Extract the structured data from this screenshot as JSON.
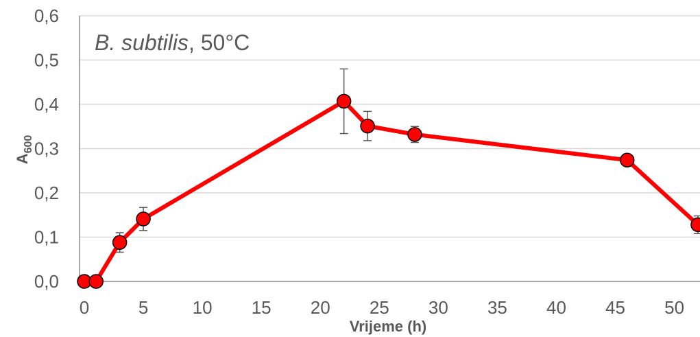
{
  "chart_data": {
    "type": "line",
    "title_italic": "B. subtilis",
    "title_rest": ", 50°C",
    "xlabel": "Vrijeme (h)",
    "ylabel_main": "A",
    "ylabel_sub": "600",
    "xlim": [
      0,
      52
    ],
    "ylim": [
      0,
      0.6
    ],
    "x_ticks": [
      "0",
      "5",
      "10",
      "15",
      "20",
      "25",
      "30",
      "35",
      "40",
      "45",
      "50"
    ],
    "y_ticks": [
      "0,0",
      "0,1",
      "0,2",
      "0,3",
      "0,4",
      "0,5",
      "0,6"
    ],
    "grid": true,
    "series": [
      {
        "color": "#ff0000",
        "x": [
          0,
          1,
          3,
          5,
          22,
          24,
          28,
          46,
          52
        ],
        "y": [
          0.0,
          0.0,
          0.088,
          0.141,
          0.407,
          0.351,
          0.332,
          0.274,
          0.128
        ],
        "error": [
          0,
          0,
          0.022,
          0.026,
          0.073,
          0.033,
          0.018,
          0,
          0.02
        ]
      }
    ]
  }
}
